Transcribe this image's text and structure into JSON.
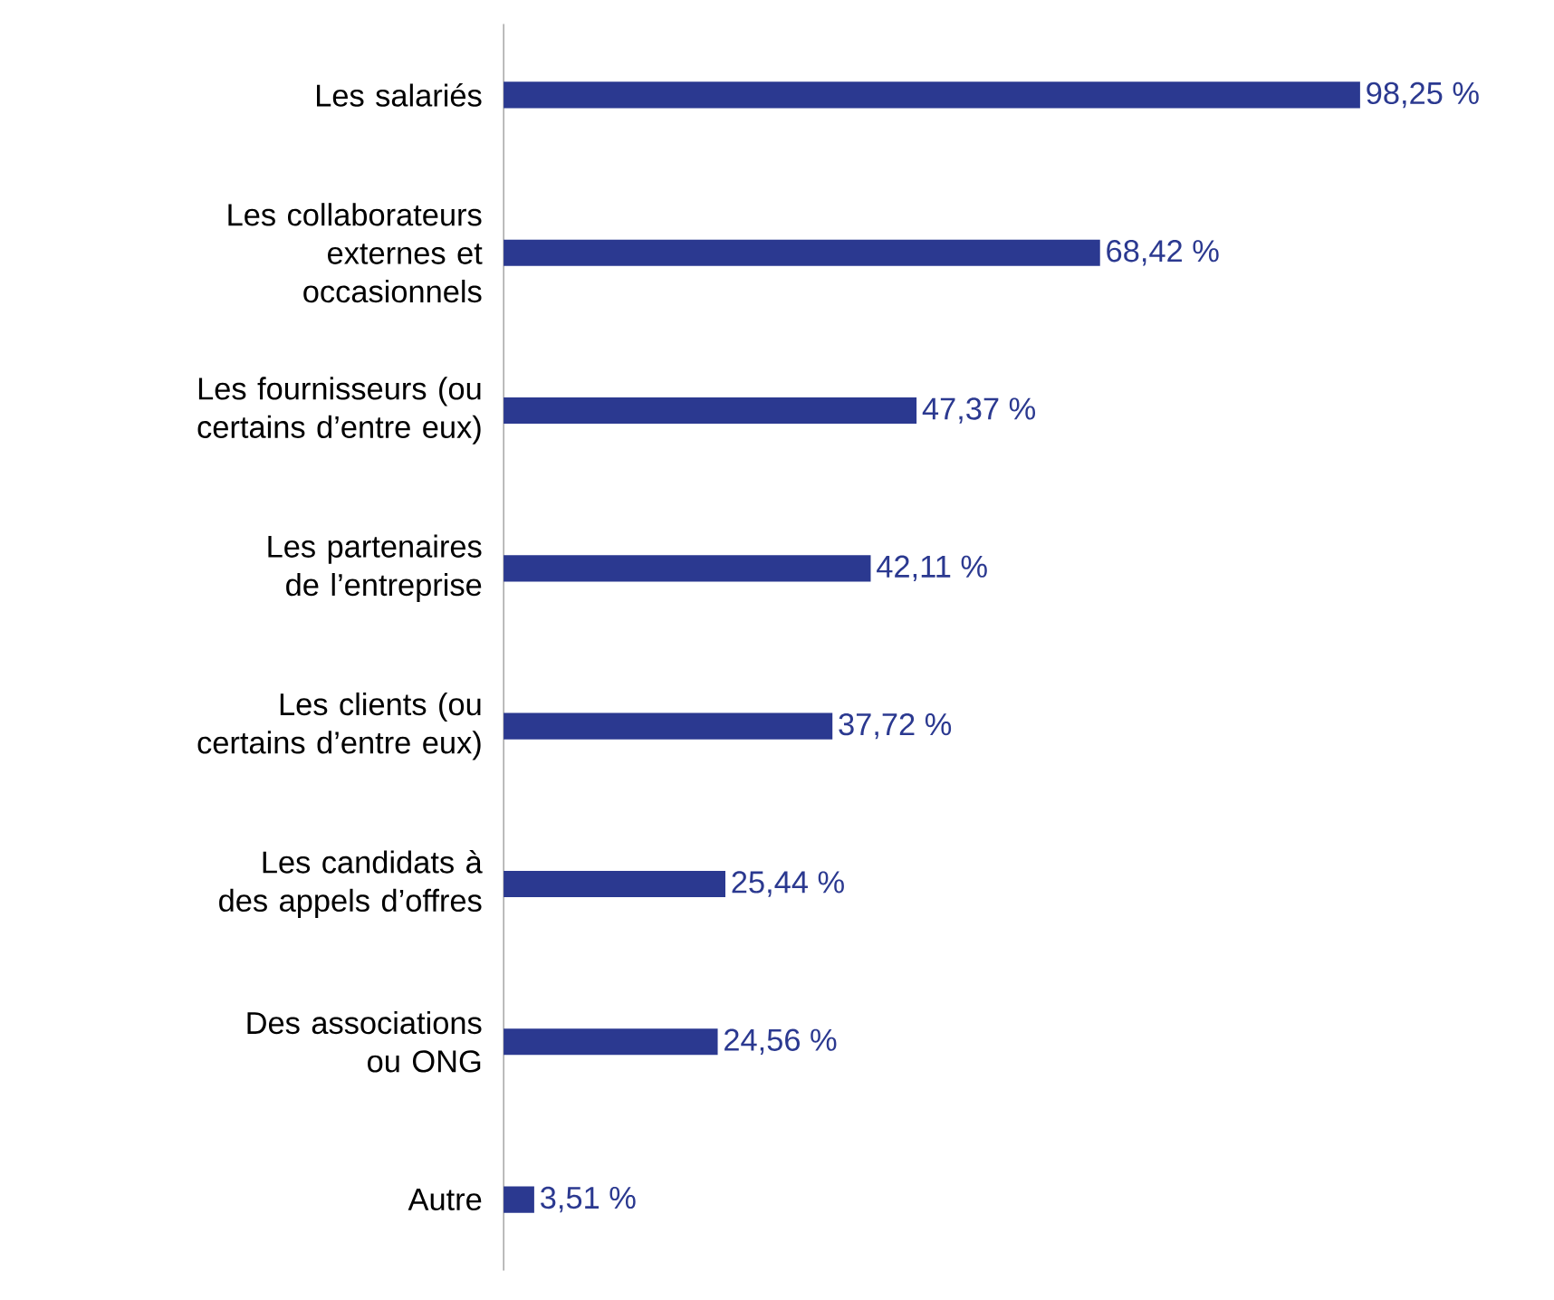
{
  "chart_data": {
    "type": "bar",
    "orientation": "horizontal",
    "categories": [
      "Les salariés",
      "Les collaborateurs externes et occasionnels",
      "Les fournisseurs (ou certains d’entre eux)",
      "Les partenaires de l’entreprise",
      "Les clients (ou certains d’entre eux)",
      "Les candidats à des appels d’offres",
      "Des associations ou ONG",
      "Autre"
    ],
    "values": [
      98.25,
      68.42,
      47.37,
      42.11,
      37.72,
      25.44,
      24.56,
      3.51
    ],
    "value_labels": [
      "98,25 %",
      "68,42 %",
      "47,37 %",
      "42,11 %",
      "37,72 %",
      "25,44 %",
      "24,56 %",
      "3,51 %"
    ],
    "color": "#2b3990"
  }
}
